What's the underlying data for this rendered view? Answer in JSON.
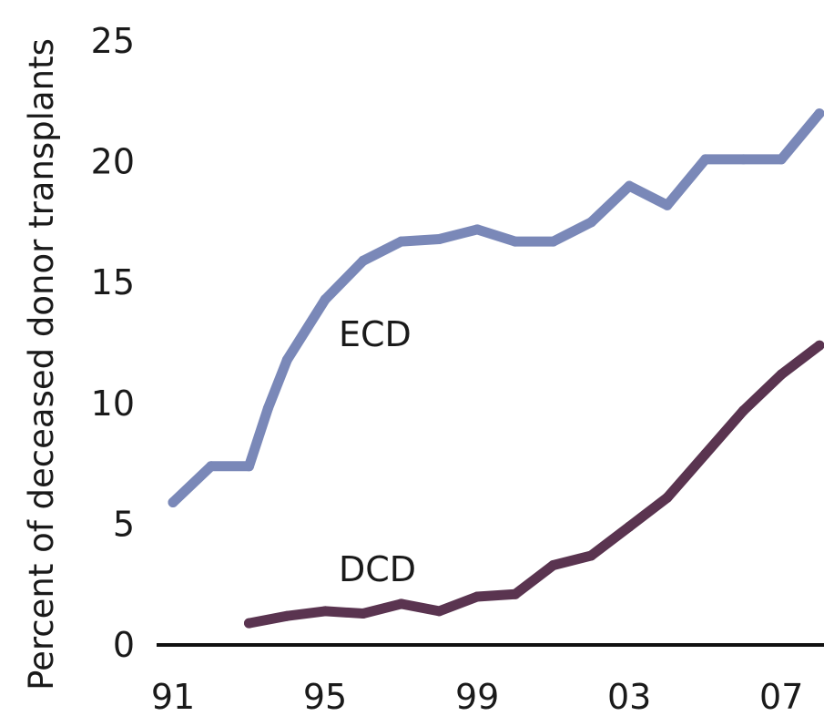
{
  "chart_data": {
    "type": "line",
    "title": "",
    "xlabel": "",
    "ylabel": "Percent of deceased donor transplants",
    "x": [
      1991,
      1992,
      1993,
      1994,
      1995,
      1996,
      1997,
      1998,
      1999,
      2000,
      2001,
      2002,
      2003,
      2004,
      2005,
      2006,
      2007,
      2008
    ],
    "xticks": [
      {
        "value": 1991,
        "label": "91"
      },
      {
        "value": 1995,
        "label": "95"
      },
      {
        "value": 1999,
        "label": "99"
      },
      {
        "value": 2003,
        "label": "03"
      },
      {
        "value": 2007,
        "label": "07"
      }
    ],
    "yticks": [
      {
        "value": 0,
        "label": "0"
      },
      {
        "value": 5,
        "label": "5"
      },
      {
        "value": 10,
        "label": "10"
      },
      {
        "value": 15,
        "label": "15"
      },
      {
        "value": 20,
        "label": "20"
      },
      {
        "value": 25,
        "label": "25"
      }
    ],
    "xlim": [
      1991,
      2008
    ],
    "ylim": [
      0,
      25
    ],
    "grid": false,
    "legend": "none (series labeled directly on lines)",
    "series": [
      {
        "name": "ECD",
        "color": "#7a88b8",
        "x": [
          1991,
          1992,
          1993,
          1993.5,
          1994,
          1995,
          1996,
          1997,
          1998,
          1999,
          2000,
          2001,
          2002,
          2003,
          2004,
          2005,
          2006,
          2007,
          2008
        ],
        "values": [
          5.9,
          7.4,
          7.4,
          9.8,
          11.8,
          14.3,
          15.9,
          16.7,
          16.8,
          17.2,
          16.7,
          16.7,
          17.5,
          19.0,
          18.2,
          20.1,
          20.1,
          20.1,
          22.0
        ]
      },
      {
        "name": "DCD",
        "color": "#5a3450",
        "x": [
          1993,
          1994,
          1995,
          1996,
          1997,
          1998,
          1999,
          2000,
          2001,
          2002,
          2003,
          2004,
          2005,
          2006,
          2007,
          2008
        ],
        "values": [
          0.9,
          1.2,
          1.4,
          1.3,
          1.7,
          1.4,
          2.0,
          2.1,
          3.3,
          3.7,
          4.9,
          6.1,
          7.9,
          9.7,
          11.2,
          12.4
        ]
      }
    ]
  }
}
